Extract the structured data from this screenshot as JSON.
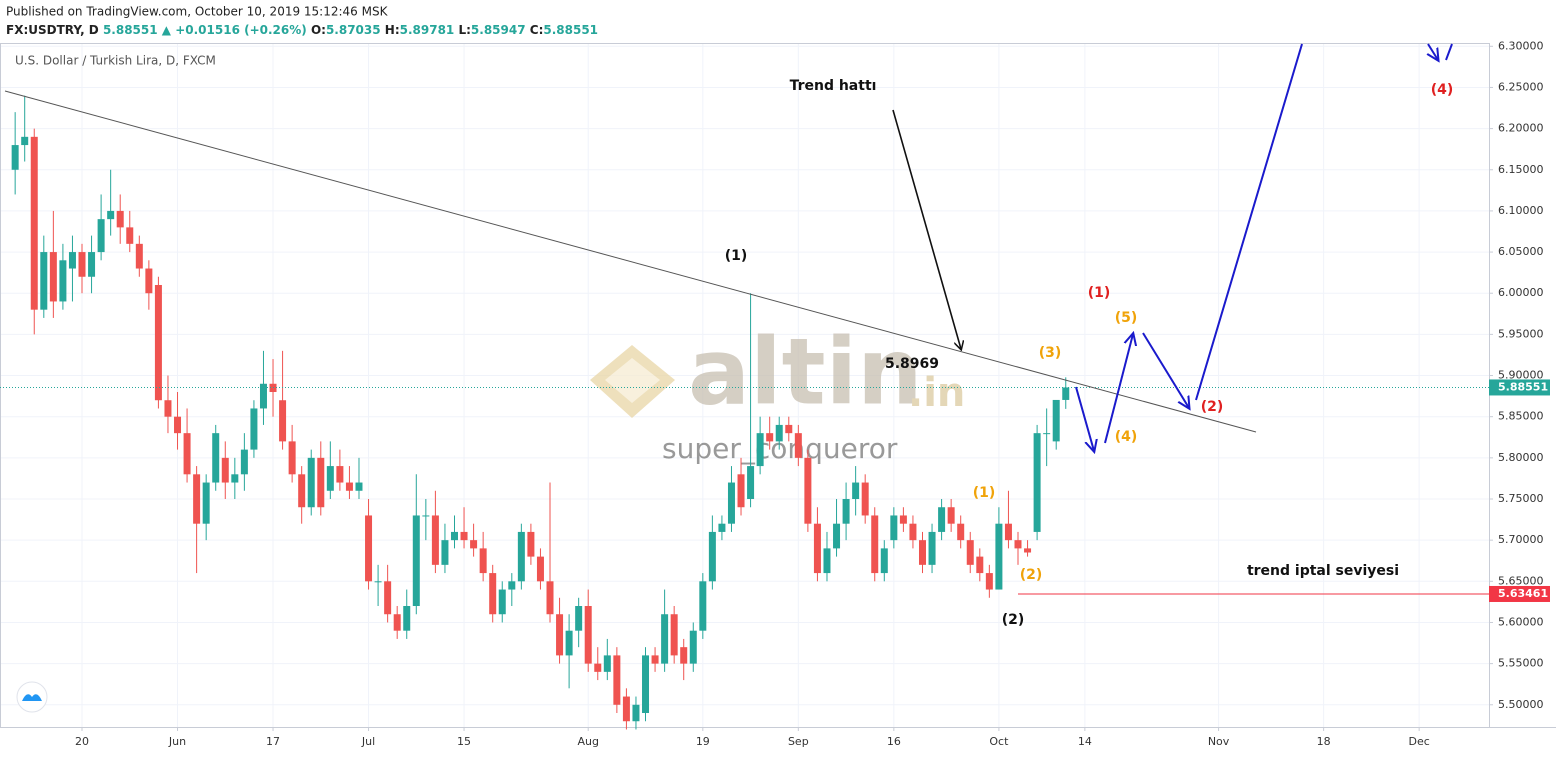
{
  "header": {
    "published": "Published on TradingView.com, October 10, 2019 15:12:46 MSK",
    "symbol": "FX:USDTRY, D",
    "last": "5.88551",
    "change": "▲ +0.01516 (+0.26%)",
    "ohlc": [
      {
        "key": "O:",
        "value": "5.87035"
      },
      {
        "key": "H:",
        "value": "5.89781"
      },
      {
        "key": "L:",
        "value": "5.85947"
      },
      {
        "key": "C:",
        "value": "5.88551"
      }
    ]
  },
  "watermark": {
    "brand": "altin",
    "domain": ".in",
    "author": "super_conqueror"
  },
  "chart_data": {
    "type": "candlestick",
    "title": "U.S. Dollar / Turkish Lira, D, FXCM",
    "up_color": "#26a69a",
    "down_color": "#ef5350",
    "grid": true,
    "x": [
      "2019-05-09",
      "2019-05-10",
      "2019-05-13",
      "2019-05-14",
      "2019-05-15",
      "2019-05-16",
      "2019-05-17",
      "2019-05-20",
      "2019-05-21",
      "2019-05-22",
      "2019-05-23",
      "2019-05-24",
      "2019-05-27",
      "2019-05-28",
      "2019-05-29",
      "2019-05-30",
      "2019-05-31",
      "2019-06-03",
      "2019-06-04",
      "2019-06-05",
      "2019-06-06",
      "2019-06-07",
      "2019-06-10",
      "2019-06-11",
      "2019-06-12",
      "2019-06-13",
      "2019-06-14",
      "2019-06-17",
      "2019-06-18",
      "2019-06-19",
      "2019-06-20",
      "2019-06-21",
      "2019-06-24",
      "2019-06-25",
      "2019-06-26",
      "2019-06-27",
      "2019-06-28",
      "2019-07-01",
      "2019-07-02",
      "2019-07-03",
      "2019-07-04",
      "2019-07-05",
      "2019-07-08",
      "2019-07-09",
      "2019-07-10",
      "2019-07-11",
      "2019-07-12",
      "2019-07-15",
      "2019-07-16",
      "2019-07-17",
      "2019-07-18",
      "2019-07-19",
      "2019-07-22",
      "2019-07-23",
      "2019-07-24",
      "2019-07-25",
      "2019-07-26",
      "2019-07-29",
      "2019-07-30",
      "2019-07-31",
      "2019-08-01",
      "2019-08-02",
      "2019-08-05",
      "2019-08-06",
      "2019-08-07",
      "2019-08-08",
      "2019-08-09",
      "2019-08-12",
      "2019-08-13",
      "2019-08-14",
      "2019-08-15",
      "2019-08-16",
      "2019-08-19",
      "2019-08-20",
      "2019-08-21",
      "2019-08-22",
      "2019-08-23",
      "2019-08-26",
      "2019-08-27",
      "2019-08-28",
      "2019-08-29",
      "2019-08-30",
      "2019-09-02",
      "2019-09-03",
      "2019-09-04",
      "2019-09-05",
      "2019-09-06",
      "2019-09-09",
      "2019-09-10",
      "2019-09-11",
      "2019-09-12",
      "2019-09-13",
      "2019-09-16",
      "2019-09-17",
      "2019-09-18",
      "2019-09-19",
      "2019-09-20",
      "2019-09-23",
      "2019-09-24",
      "2019-09-25",
      "2019-09-26",
      "2019-09-27",
      "2019-09-30",
      "2019-10-01",
      "2019-10-02",
      "2019-10-03",
      "2019-10-04",
      "2019-10-07",
      "2019-10-08",
      "2019-10-09",
      "2019-10-10"
    ],
    "open": [
      6.15,
      6.18,
      6.19,
      5.98,
      6.05,
      5.99,
      6.03,
      6.05,
      6.02,
      6.05,
      6.09,
      6.1,
      6.08,
      6.06,
      6.03,
      6.01,
      5.87,
      5.85,
      5.83,
      5.78,
      5.72,
      5.77,
      5.8,
      5.77,
      5.78,
      5.81,
      5.86,
      5.89,
      5.87,
      5.82,
      5.78,
      5.74,
      5.8,
      5.76,
      5.79,
      5.77,
      5.76,
      5.73,
      5.65,
      5.65,
      5.61,
      5.59,
      5.62,
      5.73,
      5.73,
      5.67,
      5.7,
      5.71,
      5.7,
      5.69,
      5.66,
      5.61,
      5.64,
      5.65,
      5.71,
      5.68,
      5.65,
      5.61,
      5.56,
      5.59,
      5.62,
      5.55,
      5.54,
      5.56,
      5.51,
      5.48,
      5.49,
      5.56,
      5.55,
      5.61,
      5.57,
      5.55,
      5.59,
      5.65,
      5.71,
      5.72,
      5.78,
      5.75,
      5.79,
      5.83,
      5.82,
      5.84,
      5.83,
      5.8,
      5.72,
      5.66,
      5.69,
      5.72,
      5.75,
      5.77,
      5.73,
      5.66,
      5.7,
      5.73,
      5.72,
      5.7,
      5.67,
      5.71,
      5.74,
      5.72,
      5.7,
      5.68,
      5.66,
      5.64,
      5.72,
      5.7,
      5.69,
      5.71,
      5.83,
      5.82,
      5.87035
    ],
    "high": [
      6.22,
      6.24,
      6.2,
      6.07,
      6.1,
      6.06,
      6.07,
      6.06,
      6.07,
      6.12,
      6.15,
      6.12,
      6.1,
      6.07,
      6.04,
      6.02,
      5.9,
      5.88,
      5.86,
      5.79,
      5.78,
      5.84,
      5.82,
      5.8,
      5.83,
      5.87,
      5.93,
      5.92,
      5.93,
      5.84,
      5.79,
      5.81,
      5.82,
      5.82,
      5.81,
      5.79,
      5.8,
      5.75,
      5.67,
      5.67,
      5.62,
      5.64,
      5.78,
      5.75,
      5.76,
      5.72,
      5.73,
      5.74,
      5.72,
      5.71,
      5.67,
      5.65,
      5.66,
      5.72,
      5.72,
      5.69,
      5.77,
      5.63,
      5.61,
      5.63,
      5.64,
      5.57,
      5.58,
      5.57,
      5.52,
      5.51,
      5.57,
      5.57,
      5.64,
      5.62,
      5.58,
      5.6,
      5.66,
      5.73,
      5.73,
      5.79,
      5.8,
      6.0,
      5.85,
      5.85,
      5.85,
      5.85,
      5.84,
      5.81,
      5.74,
      5.71,
      5.75,
      5.77,
      5.79,
      5.78,
      5.74,
      5.7,
      5.74,
      5.74,
      5.73,
      5.71,
      5.72,
      5.75,
      5.75,
      5.73,
      5.71,
      5.69,
      5.67,
      5.74,
      5.76,
      5.71,
      5.7,
      5.84,
      5.86,
      5.87,
      5.89781
    ],
    "low": [
      6.12,
      6.16,
      5.95,
      5.97,
      5.97,
      5.98,
      5.99,
      6.0,
      6.0,
      6.04,
      6.07,
      6.06,
      6.05,
      6.02,
      5.98,
      5.86,
      5.83,
      5.81,
      5.77,
      5.66,
      5.7,
      5.76,
      5.75,
      5.75,
      5.76,
      5.8,
      5.84,
      5.85,
      5.81,
      5.77,
      5.72,
      5.73,
      5.73,
      5.75,
      5.76,
      5.75,
      5.75,
      5.64,
      5.62,
      5.6,
      5.58,
      5.58,
      5.61,
      5.7,
      5.66,
      5.66,
      5.69,
      5.69,
      5.68,
      5.65,
      5.6,
      5.6,
      5.62,
      5.64,
      5.67,
      5.64,
      5.6,
      5.55,
      5.52,
      5.57,
      5.54,
      5.53,
      5.53,
      5.49,
      5.47,
      5.47,
      5.48,
      5.54,
      5.54,
      5.55,
      5.53,
      5.54,
      5.58,
      5.64,
      5.7,
      5.71,
      5.73,
      5.74,
      5.78,
      5.81,
      5.81,
      5.82,
      5.79,
      5.71,
      5.65,
      5.65,
      5.68,
      5.7,
      5.73,
      5.72,
      5.65,
      5.65,
      5.69,
      5.71,
      5.69,
      5.66,
      5.66,
      5.7,
      5.71,
      5.69,
      5.66,
      5.65,
      5.63,
      5.64,
      5.69,
      5.67,
      5.68,
      5.7,
      5.79,
      5.81,
      5.85947
    ],
    "close": [
      6.18,
      6.19,
      5.98,
      6.05,
      5.99,
      6.04,
      6.05,
      6.02,
      6.05,
      6.09,
      6.1,
      6.08,
      6.06,
      6.03,
      6.0,
      5.87,
      5.85,
      5.83,
      5.78,
      5.72,
      5.77,
      5.83,
      5.77,
      5.78,
      5.81,
      5.86,
      5.89,
      5.88,
      5.82,
      5.78,
      5.74,
      5.8,
      5.74,
      5.79,
      5.77,
      5.76,
      5.77,
      5.65,
      5.65,
      5.61,
      5.59,
      5.62,
      5.73,
      5.73,
      5.67,
      5.7,
      5.71,
      5.7,
      5.69,
      5.66,
      5.61,
      5.64,
      5.65,
      5.71,
      5.68,
      5.65,
      5.61,
      5.56,
      5.59,
      5.62,
      5.55,
      5.54,
      5.56,
      5.5,
      5.48,
      5.5,
      5.56,
      5.55,
      5.61,
      5.56,
      5.55,
      5.59,
      5.65,
      5.71,
      5.72,
      5.77,
      5.74,
      5.79,
      5.83,
      5.82,
      5.84,
      5.83,
      5.8,
      5.72,
      5.66,
      5.69,
      5.72,
      5.75,
      5.77,
      5.73,
      5.66,
      5.69,
      5.73,
      5.72,
      5.7,
      5.67,
      5.71,
      5.74,
      5.72,
      5.7,
      5.67,
      5.66,
      5.64,
      5.72,
      5.7,
      5.69,
      5.685,
      5.83,
      5.83,
      5.87035,
      5.88551
    ],
    "level": 5.63461,
    "level_color": "#f23645",
    "xlim": [
      "2019-05-08",
      "2019-12-11"
    ],
    "xticks": [
      {
        "value": "2019-05-20",
        "label": "20"
      },
      {
        "value": "2019-06-03",
        "label": "Jun"
      },
      {
        "value": "2019-06-17",
        "label": "17"
      },
      {
        "value": "2019-07-01",
        "label": "Jul"
      },
      {
        "value": "2019-07-15",
        "label": "15"
      },
      {
        "value": "2019-08-01",
        "label": "Aug"
      },
      {
        "value": "2019-08-19",
        "label": "19"
      },
      {
        "value": "2019-09-02",
        "label": "Sep"
      },
      {
        "value": "2019-09-16",
        "label": "16"
      },
      {
        "value": "2019-10-01",
        "label": "Oct"
      },
      {
        "value": "2019-10-14",
        "label": "14"
      },
      {
        "value": "2019-11-01",
        "label": "Nov"
      },
      {
        "value": "2019-11-18",
        "label": "18"
      },
      {
        "value": "2019-12-02",
        "label": "Dec"
      }
    ],
    "ylim": [
      5.473,
      6.304
    ],
    "yticks": [
      {
        "value": 5.5,
        "label": "5.50000"
      },
      {
        "value": 5.55,
        "label": "5.55000"
      },
      {
        "value": 5.6,
        "label": "5.60000"
      },
      {
        "value": 5.65,
        "label": "5.65000"
      },
      {
        "value": 5.7,
        "label": "5.70000"
      },
      {
        "value": 5.75,
        "label": "5.75000"
      },
      {
        "value": 5.8,
        "label": "5.80000"
      },
      {
        "value": 5.85,
        "label": "5.85000"
      },
      {
        "value": 5.9,
        "label": "5.90000"
      },
      {
        "value": 5.95,
        "label": "5.95000"
      },
      {
        "value": 6.0,
        "label": "6.00000"
      },
      {
        "value": 6.05,
        "label": "6.05000"
      },
      {
        "value": 6.1,
        "label": "6.10000"
      },
      {
        "value": 6.15,
        "label": "6.15000"
      },
      {
        "value": 6.2,
        "label": "6.20000"
      },
      {
        "value": 6.25,
        "label": "6.25000"
      },
      {
        "value": 6.3,
        "label": "6.30000"
      }
    ],
    "annotations": [
      "Trend hattı",
      "(1)",
      "5.8969",
      "(3)",
      "(1)",
      "(5)",
      "(2)",
      "(4)",
      "(1)",
      "(2)",
      "(2)",
      "trend iptal seviyesi",
      "(4)"
    ]
  }
}
